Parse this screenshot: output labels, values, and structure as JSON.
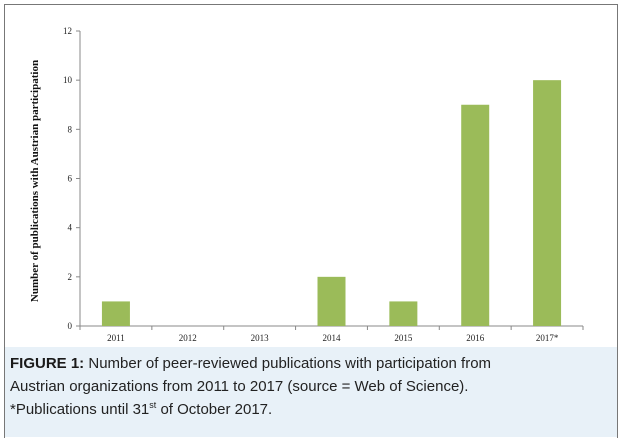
{
  "chart_data": {
    "type": "bar",
    "categories": [
      "2011",
      "2012",
      "2013",
      "2014",
      "2015",
      "2016",
      "2017*"
    ],
    "values": [
      1,
      0,
      0,
      2,
      1,
      9,
      10
    ],
    "ylabel": "Number of publications with Austrian participation",
    "xlabel": "",
    "ylim": [
      0,
      12
    ],
    "yticks": [
      0,
      2,
      4,
      6,
      8,
      10,
      12
    ],
    "bar_color": "#9bbb59",
    "grid": false
  },
  "caption": {
    "label": "FIGURE 1:",
    "line1": " Number of peer-reviewed publications with participation from",
    "line2": "Austrian organizations from 2011 to 2017 (source = Web of Science).",
    "line3_pre": "*Publications until 31",
    "line3_sup": "st",
    "line3_post": " of October 2017."
  }
}
